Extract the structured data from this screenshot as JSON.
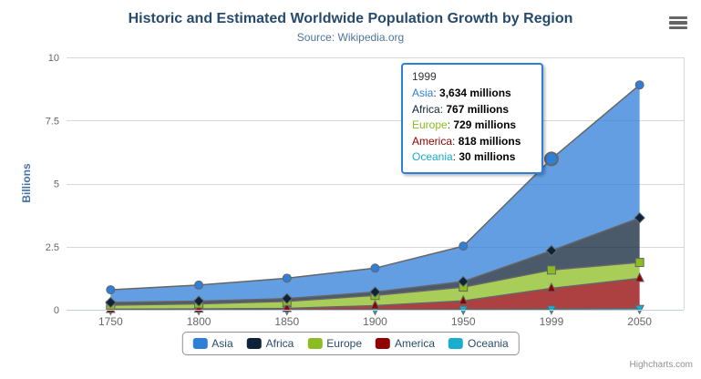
{
  "chart": {
    "title": "Historic and Estimated Worldwide Population Growth by Region",
    "subtitle": "Source: Wikipedia.org",
    "credits": "Highcharts.com"
  },
  "chart_data": {
    "type": "area",
    "stacking": "normal",
    "categories": [
      "1750",
      "1800",
      "1850",
      "1900",
      "1950",
      "1999",
      "2050"
    ],
    "series": [
      {
        "name": "Asia",
        "color": "#2f7ed8",
        "marker": "circle",
        "values": [
          502,
          635,
          809,
          947,
          1402,
          3634,
          5268
        ]
      },
      {
        "name": "Africa",
        "color": "#0d233a",
        "marker": "diamond",
        "values": [
          106,
          107,
          111,
          133,
          221,
          767,
          1766
        ]
      },
      {
        "name": "Europe",
        "color": "#8bbc21",
        "marker": "square",
        "values": [
          163,
          203,
          276,
          408,
          547,
          729,
          628
        ]
      },
      {
        "name": "America",
        "color": "#910000",
        "marker": "triangle",
        "values": [
          18,
          31,
          54,
          156,
          339,
          818,
          1201
        ]
      },
      {
        "name": "Oceania",
        "color": "#1aadce",
        "marker": "triangle-down",
        "values": [
          2,
          2,
          2,
          6,
          13,
          30,
          46
        ]
      }
    ],
    "units": "millions",
    "ylabel": "Billions",
    "ylim": [
      0,
      10
    ],
    "yticks": [
      0,
      2.5,
      5,
      7.5,
      10
    ],
    "grid": true,
    "legend_position": "bottom",
    "hover": {
      "series": "Asia",
      "category": "1999"
    },
    "line_color": "#666666",
    "grid_color": "#d8d8d8",
    "axis_line_color": "#c0d0e0",
    "label_color": "#666666",
    "fill_opacity": 0.75
  },
  "tooltip": {
    "header": "1999",
    "separator": ": ",
    "rows": [
      {
        "name": "Asia",
        "color": "#2f7ed8",
        "value": "3,634 millions"
      },
      {
        "name": "Africa",
        "color": "#0d233a",
        "value": "767 millions"
      },
      {
        "name": "Europe",
        "color": "#8bbc21",
        "value": "729 millions"
      },
      {
        "name": "America",
        "color": "#910000",
        "value": "818 millions"
      },
      {
        "name": "Oceania",
        "color": "#1aadce",
        "value": "30 millions"
      }
    ]
  },
  "legend": {
    "items": [
      "Asia",
      "Africa",
      "Europe",
      "America",
      "Oceania"
    ]
  }
}
